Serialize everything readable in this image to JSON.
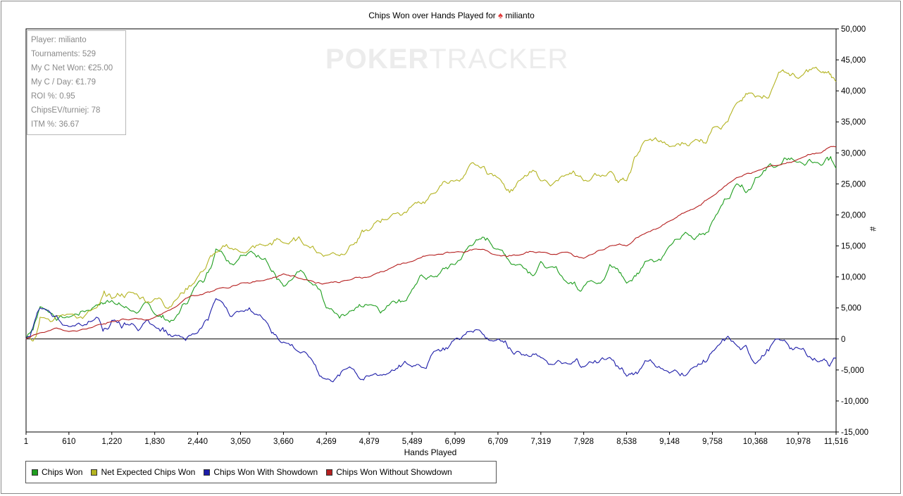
{
  "chart_data": {
    "type": "line",
    "title_prefix": "Chips Won over Hands Played for",
    "title_player": "milianto",
    "xlabel": "Hands Played",
    "ylabel": "#",
    "xlim": [
      1,
      11516
    ],
    "ylim": [
      -15000,
      50000
    ],
    "x_ticks": [
      "1",
      "610",
      "1,220",
      "1,830",
      "2,440",
      "3,050",
      "3,660",
      "4,269",
      "4,879",
      "5,489",
      "6,099",
      "6,709",
      "7,319",
      "7,928",
      "8,538",
      "9,148",
      "9,758",
      "10,368",
      "10,978",
      "11,516"
    ],
    "y_ticks": [
      "50,000",
      "45,000",
      "40,000",
      "35,000",
      "30,000",
      "25,000",
      "20,000",
      "15,000",
      "10,000",
      "5,000",
      "0",
      "-5,000",
      "-10,000",
      "-15,000"
    ],
    "x": [
      1,
      200,
      610,
      1000,
      1220,
      1500,
      1830,
      2100,
      2440,
      2700,
      3050,
      3400,
      3660,
      4000,
      4269,
      4600,
      4879,
      5200,
      5489,
      5800,
      6099,
      6400,
      6709,
      7000,
      7319,
      7700,
      7928,
      8300,
      8538,
      8800,
      9148,
      9500,
      9758,
      10100,
      10368,
      10700,
      10978,
      11300,
      11516
    ],
    "series": [
      {
        "name": "Chips Won",
        "color": "#1f9e1f",
        "values": [
          0,
          5200,
          3500,
          5500,
          6200,
          4500,
          4000,
          3000,
          9000,
          14500,
          13500,
          13000,
          8500,
          9500,
          5000,
          4500,
          5500,
          6000,
          8000,
          10000,
          12000,
          16000,
          14500,
          12000,
          12500,
          9000,
          8500,
          12000,
          9000,
          12500,
          15000,
          16000,
          19000,
          25000,
          26000,
          28000,
          28500,
          28000,
          27500
        ]
      },
      {
        "name": "Net Expected Chips Won",
        "color": "#b3b320",
        "values": [
          0,
          3500,
          4000,
          5000,
          6500,
          7500,
          6500,
          6000,
          10000,
          14000,
          14000,
          15000,
          15500,
          15000,
          13500,
          15000,
          17500,
          20000,
          21500,
          23500,
          25500,
          28000,
          26000,
          25500,
          25500,
          26500,
          25500,
          27000,
          25500,
          32000,
          31000,
          32000,
          34000,
          38000,
          39000,
          43000,
          42000,
          43000,
          41500
        ]
      },
      {
        "name": "Chips Won With Showdown",
        "color": "#1c1ca8",
        "values": [
          0,
          5000,
          2000,
          3500,
          3000,
          2500,
          2000,
          500,
          1000,
          6500,
          4500,
          3000,
          -500,
          -2500,
          -6500,
          -4500,
          -6000,
          -5000,
          -4500,
          -2000,
          0,
          1500,
          0,
          -2000,
          -3000,
          -4000,
          -4500,
          -3000,
          -6000,
          -3500,
          -5500,
          -4500,
          -2000,
          -1000,
          -4000,
          0,
          -1500,
          -3500,
          -3000
        ]
      },
      {
        "name": "Chips Won Without Showdown",
        "color": "#b51f1f",
        "values": [
          0,
          1000,
          1200,
          2200,
          2800,
          3200,
          3500,
          5000,
          7000,
          8000,
          9000,
          9500,
          10500,
          9500,
          9000,
          9500,
          10000,
          11500,
          12500,
          13500,
          14000,
          14500,
          13500,
          13500,
          14000,
          14000,
          13000,
          15000,
          15000,
          17000,
          19000,
          21000,
          23000,
          26000,
          27000,
          28000,
          29000,
          30000,
          31000
        ]
      }
    ]
  },
  "stats_box": [
    "Player: milianto",
    "Tournaments: 529",
    "My C Net Won: €25.00",
    "My C / Day: €1.79",
    "ROI %: 0.95",
    "ChipsEV/turniej: 78",
    "ITM %: 36.67"
  ],
  "watermark": {
    "bold": "POKER",
    "thin": "TRACKER"
  }
}
